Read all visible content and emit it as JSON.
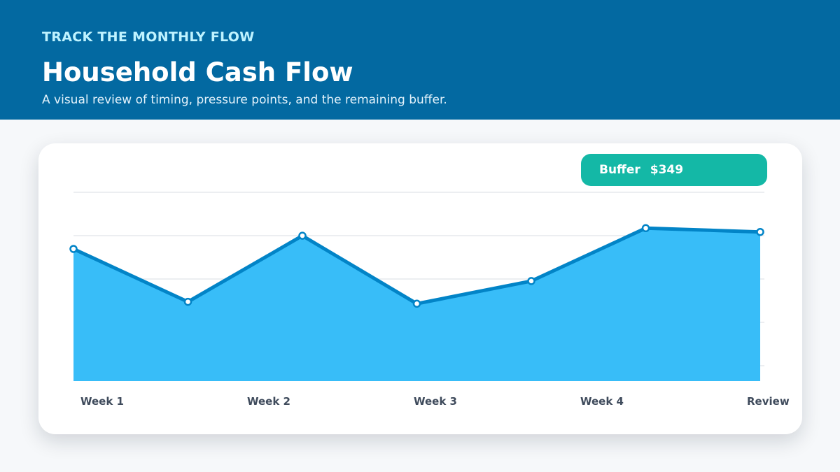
{
  "header": {
    "eyebrow": "TRACK THE MONTHLY FLOW",
    "title": "Household Cash Flow",
    "subtitle": "A visual review of timing, pressure points, and the remaining buffer."
  },
  "buffer": {
    "label": "Buffer",
    "value": "$349"
  },
  "colors": {
    "header_bg": "#0369a1",
    "area_fill": "#38bdf8",
    "line": "#0284c7",
    "pill": "#14b8a6",
    "grid": "#d9dde3",
    "tick_label": "#3f4b5c"
  },
  "chart_data": {
    "type": "area",
    "x_labels": [
      "Week 1",
      "Week 2",
      "Week 3",
      "Week 4",
      "Review"
    ],
    "values": [
      0.7,
      0.42,
      0.77,
      0.41,
      0.53,
      0.81,
      0.79
    ],
    "ylim": [
      0,
      1
    ],
    "grid": true,
    "legend": "none"
  }
}
